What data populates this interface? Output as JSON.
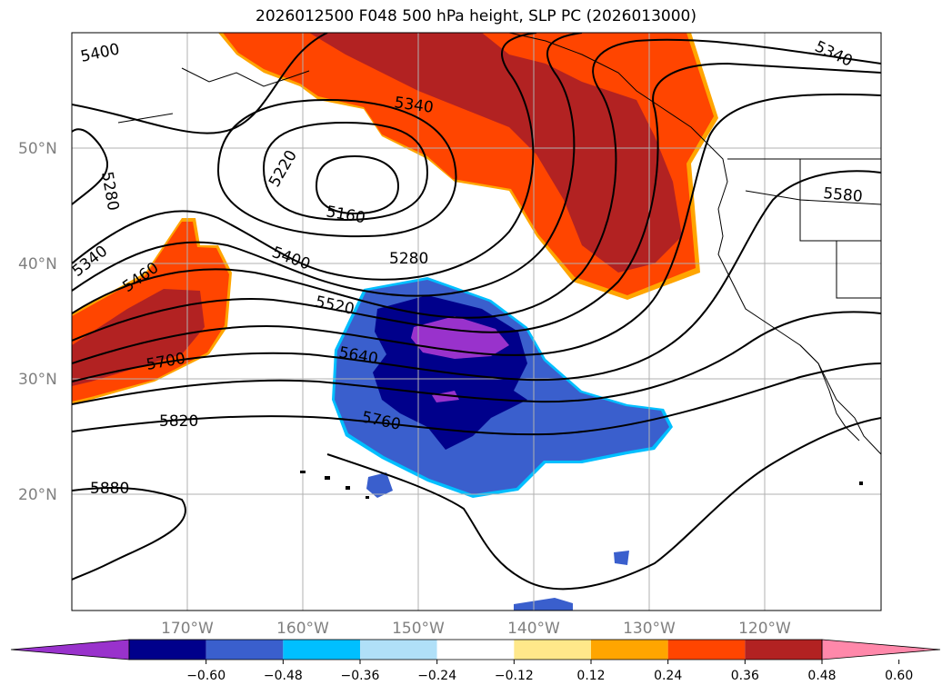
{
  "title": "2026012500 F048 500 hPa height, SLP PC (2026013000)",
  "latitude_labels": [
    "50°N",
    "40°N",
    "30°N",
    "20°N"
  ],
  "longitude_labels": [
    "170°W",
    "160°W",
    "150°W",
    "140°W",
    "130°W",
    "120°W"
  ],
  "contour_labels": [
    "5400",
    "5340",
    "5340",
    "5280",
    "5220",
    "5160",
    "5580",
    "5340",
    "5460",
    "5400",
    "5280",
    "5520",
    "5700",
    "5640",
    "5820",
    "5760",
    "5880"
  ],
  "colorbar": {
    "tick_labels": [
      "−0.60",
      "−0.48",
      "−0.36",
      "−0.24",
      "−0.12",
      "0.12",
      "0.24",
      "0.36",
      "0.48",
      "0.60"
    ],
    "colors": [
      "#9932cc",
      "#00008b",
      "#3a5fcd",
      "#00bfff",
      "#b0e0f8",
      "#ffffff",
      "#ffe88a",
      "#ffa500",
      "#ff4500",
      "#b22222",
      "#ff88aa"
    ]
  },
  "legend_colors": {
    "strong_positive": "#b22222",
    "positive": "#ff4500",
    "weak_positive": "#ffa500",
    "strong_negative": "#9932cc",
    "negative": "#00008b",
    "weak_negative": "#3a5fcd"
  }
}
